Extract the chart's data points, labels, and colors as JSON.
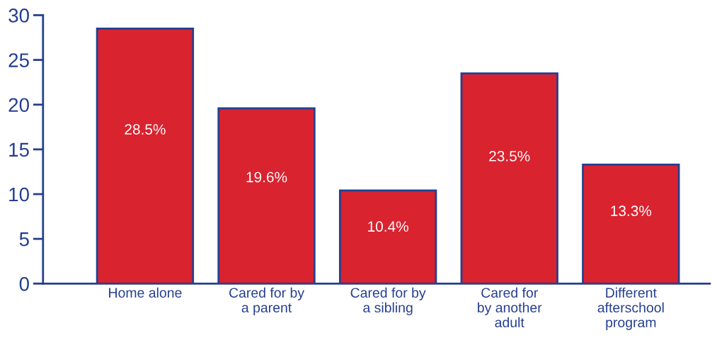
{
  "chart_data": {
    "type": "bar",
    "categories": [
      "Home alone",
      "Cared for by\na parent",
      "Cared for by\na sibling",
      "Cared for\nby another\nadult",
      "Different\nafterschool\nprogram"
    ],
    "values": [
      28.5,
      19.6,
      10.4,
      23.5,
      13.3
    ],
    "value_labels": [
      "28.5%",
      "19.6%",
      "10.4%",
      "23.5%",
      "13.3%"
    ],
    "color": "#d9232f",
    "ylim": [
      0,
      30
    ],
    "yticks": [
      0,
      5,
      10,
      15,
      20,
      25,
      30
    ],
    "grid": false
  }
}
